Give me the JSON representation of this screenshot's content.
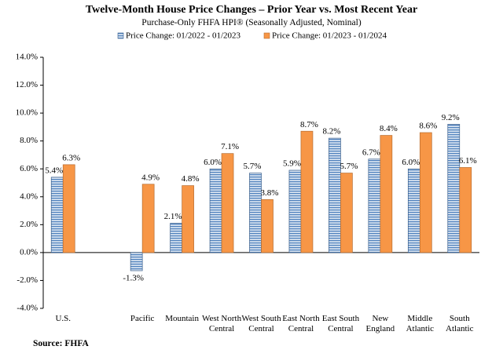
{
  "chart_data": {
    "type": "bar",
    "title": "Twelve-Month House Price Changes – Prior Year vs. Most Recent Year",
    "subtitle": "Purchase-Only FHFA HPI® (Seasonally Adjusted, Nominal)",
    "source": "Source: FHFA",
    "categories": [
      "U.S.",
      null,
      "Pacific",
      "Mountain",
      "West North Central",
      "West South Central",
      "East North Central",
      "East South Central",
      "New England",
      "Middle Atlantic",
      "South Atlantic"
    ],
    "series": [
      {
        "name": "Price Change:  01/2022 - 01/2023",
        "color": "#4f81bd",
        "values": [
          5.4,
          null,
          -1.3,
          2.1,
          6.0,
          5.7,
          5.9,
          8.2,
          6.7,
          6.0,
          9.2
        ],
        "value_labels": [
          "5.4%",
          null,
          "-1.3%",
          "2.1%",
          "6.0%",
          "5.7%",
          "5.9%",
          "8.2%",
          "6.7%",
          "6.0%",
          "9.2%"
        ]
      },
      {
        "name": "Price Change:  01/2023 - 01/2024",
        "color": "#f79646",
        "values": [
          6.3,
          null,
          4.9,
          4.8,
          7.1,
          3.8,
          8.7,
          5.7,
          8.4,
          8.6,
          6.1
        ],
        "value_labels": [
          "6.3%",
          null,
          "4.9%",
          "4.8%",
          "7.1%",
          "3.8%",
          "8.7%",
          "5.7%",
          "8.4%",
          "8.6%",
          "6.1%"
        ]
      }
    ],
    "ylim": [
      -4,
      14
    ],
    "yticks": [
      {
        "value": -4,
        "label": "-4.0%"
      },
      {
        "value": -2,
        "label": "-2.0%"
      },
      {
        "value": 0,
        "label": "0.0%"
      },
      {
        "value": 2,
        "label": "2.0%"
      },
      {
        "value": 4,
        "label": "4.0%"
      },
      {
        "value": 6,
        "label": "6.0%"
      },
      {
        "value": 8,
        "label": "8.0%"
      },
      {
        "value": 10,
        "label": "10.0%"
      },
      {
        "value": 12,
        "label": "12.0%"
      },
      {
        "value": 14,
        "label": "14.0%"
      }
    ],
    "grid": false,
    "legend": "top"
  }
}
